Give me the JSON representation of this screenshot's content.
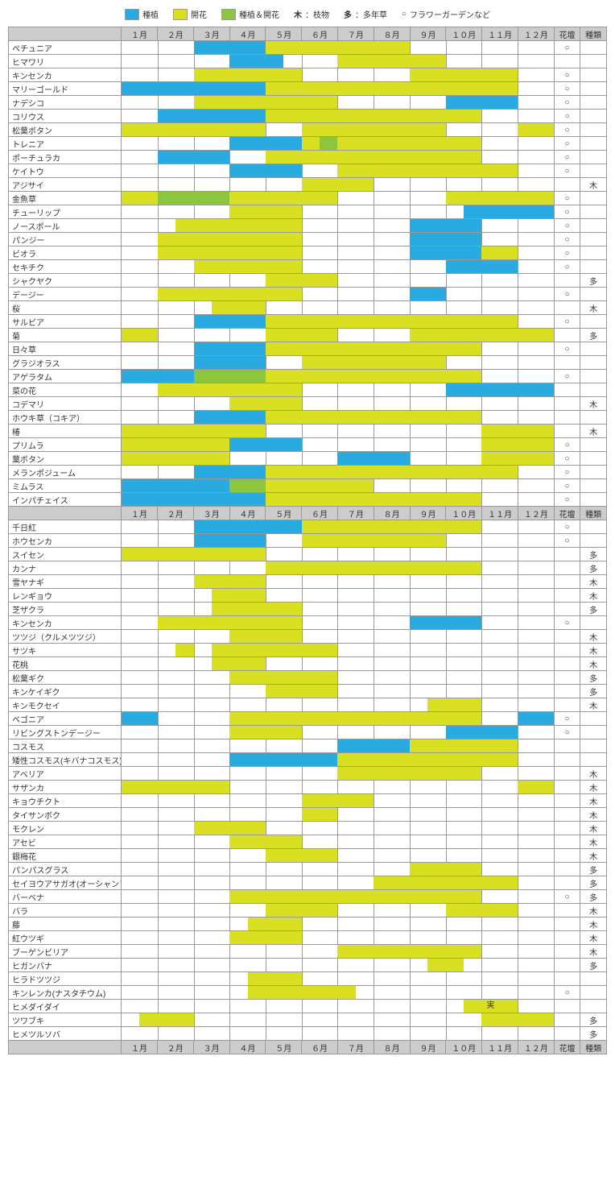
{
  "colors": {
    "plant": "#29abe2",
    "bloom": "#d9e021",
    "both": "#8cc63f",
    "header": "#cccccc",
    "border": "#999999"
  },
  "legend": [
    {
      "swatch": "#29abe2",
      "label": "種植"
    },
    {
      "swatch": "#d9e021",
      "label": "開花"
    },
    {
      "swatch": "#8cc63f",
      "label": "種植＆開花"
    },
    {
      "text": "木",
      "label": "：枝物"
    },
    {
      "text": "多",
      "label": "：多年草"
    },
    {
      "text": "○",
      "label": "フラワーガーデンなど"
    }
  ],
  "months": [
    "１月",
    "２月",
    "３月",
    "４月",
    "５月",
    "６月",
    "７月",
    "８月",
    "９月",
    "１０月",
    "１１月",
    "１２月"
  ],
  "cols": {
    "flower": "花壇",
    "kind": "種類"
  },
  "half_cells": 24,
  "rows": [
    {
      "n": "ペチュニア",
      "s": [
        {
          "f": 4,
          "t": 8,
          "c": "p"
        },
        {
          "f": 8,
          "t": 16,
          "c": "b"
        }
      ],
      "fl": "○",
      "k": ""
    },
    {
      "n": "ヒマワリ",
      "s": [
        {
          "f": 6,
          "t": 9,
          "c": "p"
        },
        {
          "f": 12,
          "t": 18,
          "c": "b"
        }
      ],
      "fl": "",
      "k": ""
    },
    {
      "n": "キンセンカ",
      "s": [
        {
          "f": 4,
          "t": 10,
          "c": "b"
        },
        {
          "f": 16,
          "t": 22,
          "c": "b"
        }
      ],
      "fl": "○",
      "k": ""
    },
    {
      "n": "マリーゴールド",
      "s": [
        {
          "f": 0,
          "t": 8,
          "c": "p"
        },
        {
          "f": 8,
          "t": 22,
          "c": "b"
        }
      ],
      "fl": "○",
      "k": ""
    },
    {
      "n": "ナデシコ",
      "s": [
        {
          "f": 4,
          "t": 8,
          "c": "b"
        },
        {
          "f": 8,
          "t": 12,
          "c": "b"
        },
        {
          "f": 18,
          "t": 22,
          "c": "p"
        }
      ],
      "fl": "○",
      "k": ""
    },
    {
      "n": "コリウス",
      "s": [
        {
          "f": 2,
          "t": 8,
          "c": "p"
        },
        {
          "f": 8,
          "t": 20,
          "c": "b"
        }
      ],
      "fl": "○",
      "k": ""
    },
    {
      "n": "松葉ボタン",
      "s": [
        {
          "f": 0,
          "t": 8,
          "c": "b"
        },
        {
          "f": 10,
          "t": 18,
          "c": "b"
        },
        {
          "f": 22,
          "t": 24,
          "c": "b"
        }
      ],
      "fl": "○",
      "k": ""
    },
    {
      "n": "トレニア",
      "s": [
        {
          "f": 6,
          "t": 10,
          "c": "p"
        },
        {
          "f": 10,
          "t": 11,
          "c": "b"
        },
        {
          "f": 11,
          "t": 12,
          "c": "g"
        },
        {
          "f": 12,
          "t": 20,
          "c": "b"
        }
      ],
      "fl": "○",
      "k": ""
    },
    {
      "n": "ポーチュラカ",
      "s": [
        {
          "f": 2,
          "t": 6,
          "c": "p"
        },
        {
          "f": 8,
          "t": 20,
          "c": "b"
        }
      ],
      "fl": "○",
      "k": ""
    },
    {
      "n": "ケイトウ",
      "s": [
        {
          "f": 6,
          "t": 10,
          "c": "p"
        },
        {
          "f": 12,
          "t": 22,
          "c": "b"
        }
      ],
      "fl": "○",
      "k": ""
    },
    {
      "n": "アジサイ",
      "s": [
        {
          "f": 10,
          "t": 14,
          "c": "b"
        }
      ],
      "fl": "",
      "k": "木"
    },
    {
      "n": "金魚草",
      "s": [
        {
          "f": 0,
          "t": 2,
          "c": "b"
        },
        {
          "f": 2,
          "t": 6,
          "c": "g"
        },
        {
          "f": 6,
          "t": 8,
          "c": "b"
        },
        {
          "f": 8,
          "t": 12,
          "c": "b"
        },
        {
          "f": 18,
          "t": 24,
          "c": "b"
        }
      ],
      "fl": "○",
      "k": ""
    },
    {
      "n": "チューリップ",
      "s": [
        {
          "f": 6,
          "t": 10,
          "c": "b"
        },
        {
          "f": 19,
          "t": 24,
          "c": "p"
        }
      ],
      "fl": "○",
      "k": ""
    },
    {
      "n": "ノースポール",
      "s": [
        {
          "f": 3,
          "t": 10,
          "c": "b"
        },
        {
          "f": 16,
          "t": 20,
          "c": "p"
        }
      ],
      "fl": "○",
      "k": ""
    },
    {
      "n": "パンジー",
      "s": [
        {
          "f": 2,
          "t": 10,
          "c": "b"
        },
        {
          "f": 16,
          "t": 20,
          "c": "p"
        }
      ],
      "fl": "○",
      "k": ""
    },
    {
      "n": "ビオラ",
      "s": [
        {
          "f": 2,
          "t": 10,
          "c": "b"
        },
        {
          "f": 16,
          "t": 20,
          "c": "p"
        },
        {
          "f": 20,
          "t": 22,
          "c": "b"
        }
      ],
      "fl": "○",
      "k": ""
    },
    {
      "n": "セキチク",
      "s": [
        {
          "f": 4,
          "t": 10,
          "c": "b"
        },
        {
          "f": 18,
          "t": 22,
          "c": "p"
        }
      ],
      "fl": "○",
      "k": ""
    },
    {
      "n": "シャクヤク",
      "s": [
        {
          "f": 8,
          "t": 12,
          "c": "b"
        }
      ],
      "fl": "",
      "k": "多"
    },
    {
      "n": "デージー",
      "s": [
        {
          "f": 2,
          "t": 10,
          "c": "b"
        },
        {
          "f": 16,
          "t": 18,
          "c": "p"
        }
      ],
      "fl": "○",
      "k": ""
    },
    {
      "n": "桜",
      "s": [
        {
          "f": 5,
          "t": 8,
          "c": "b"
        }
      ],
      "fl": "",
      "k": "木"
    },
    {
      "n": "サルビア",
      "s": [
        {
          "f": 4,
          "t": 8,
          "c": "p"
        },
        {
          "f": 8,
          "t": 22,
          "c": "b"
        }
      ],
      "fl": "○",
      "k": ""
    },
    {
      "n": "菊",
      "s": [
        {
          "f": 0,
          "t": 2,
          "c": "b"
        },
        {
          "f": 8,
          "t": 12,
          "c": "b"
        },
        {
          "f": 16,
          "t": 24,
          "c": "b"
        }
      ],
      "fl": "",
      "k": "多"
    },
    {
      "n": "日々草",
      "s": [
        {
          "f": 4,
          "t": 8,
          "c": "p"
        },
        {
          "f": 8,
          "t": 20,
          "c": "b"
        }
      ],
      "fl": "○",
      "k": ""
    },
    {
      "n": "グラジオラス",
      "s": [
        {
          "f": 4,
          "t": 8,
          "c": "p"
        },
        {
          "f": 10,
          "t": 18,
          "c": "b"
        }
      ],
      "fl": "",
      "k": ""
    },
    {
      "n": "アゲラタム",
      "s": [
        {
          "f": 0,
          "t": 4,
          "c": "p"
        },
        {
          "f": 4,
          "t": 8,
          "c": "g"
        },
        {
          "f": 8,
          "t": 20,
          "c": "b"
        }
      ],
      "fl": "○",
      "k": ""
    },
    {
      "n": "菜の花",
      "s": [
        {
          "f": 2,
          "t": 10,
          "c": "b"
        },
        {
          "f": 18,
          "t": 24,
          "c": "p"
        }
      ],
      "fl": "",
      "k": ""
    },
    {
      "n": "コデマリ",
      "s": [
        {
          "f": 6,
          "t": 10,
          "c": "b"
        }
      ],
      "fl": "",
      "k": "木"
    },
    {
      "n": "ホウキ草（コキア）",
      "s": [
        {
          "f": 4,
          "t": 8,
          "c": "p"
        },
        {
          "f": 8,
          "t": 20,
          "c": "b"
        }
      ],
      "fl": "",
      "k": ""
    },
    {
      "n": "椿",
      "s": [
        {
          "f": 0,
          "t": 8,
          "c": "b"
        },
        {
          "f": 20,
          "t": 24,
          "c": "b"
        }
      ],
      "fl": "",
      "k": "木"
    },
    {
      "n": "プリムラ",
      "s": [
        {
          "f": 0,
          "t": 6,
          "c": "b"
        },
        {
          "f": 6,
          "t": 10,
          "c": "p"
        },
        {
          "f": 20,
          "t": 24,
          "c": "b"
        }
      ],
      "fl": "○",
      "k": ""
    },
    {
      "n": "葉ボタン",
      "s": [
        {
          "f": 0,
          "t": 6,
          "c": "b"
        },
        {
          "f": 12,
          "t": 16,
          "c": "p"
        },
        {
          "f": 20,
          "t": 24,
          "c": "b"
        }
      ],
      "fl": "○",
      "k": ""
    },
    {
      "n": "メランポジューム",
      "s": [
        {
          "f": 4,
          "t": 8,
          "c": "p"
        },
        {
          "f": 8,
          "t": 22,
          "c": "b"
        }
      ],
      "fl": "○",
      "k": ""
    },
    {
      "n": "ミムラス",
      "s": [
        {
          "f": 0,
          "t": 6,
          "c": "p"
        },
        {
          "f": 6,
          "t": 8,
          "c": "g"
        },
        {
          "f": 8,
          "t": 14,
          "c": "b"
        }
      ],
      "fl": "○",
      "k": ""
    },
    {
      "n": "インパチェイス",
      "s": [
        {
          "f": 0,
          "t": 8,
          "c": "p"
        },
        {
          "f": 8,
          "t": 20,
          "c": "b"
        }
      ],
      "fl": "○",
      "k": ""
    },
    {
      "header": true
    },
    {
      "n": "千日紅",
      "s": [
        {
          "f": 4,
          "t": 10,
          "c": "p"
        },
        {
          "f": 10,
          "t": 20,
          "c": "b"
        }
      ],
      "fl": "○",
      "k": ""
    },
    {
      "n": "ホウセンカ",
      "s": [
        {
          "f": 4,
          "t": 8,
          "c": "p"
        },
        {
          "f": 10,
          "t": 18,
          "c": "b"
        }
      ],
      "fl": "○",
      "k": ""
    },
    {
      "n": "スイセン",
      "s": [
        {
          "f": 0,
          "t": 8,
          "c": "b"
        }
      ],
      "fl": "",
      "k": "多"
    },
    {
      "n": "カンナ",
      "s": [
        {
          "f": 8,
          "t": 20,
          "c": "b"
        }
      ],
      "fl": "",
      "k": "多"
    },
    {
      "n": "雪ヤナギ",
      "s": [
        {
          "f": 4,
          "t": 8,
          "c": "b"
        }
      ],
      "fl": "",
      "k": "木"
    },
    {
      "n": "レンギョウ",
      "s": [
        {
          "f": 5,
          "t": 8,
          "c": "b"
        }
      ],
      "fl": "",
      "k": "木"
    },
    {
      "n": "芝ザクラ",
      "s": [
        {
          "f": 5,
          "t": 10,
          "c": "b"
        }
      ],
      "fl": "",
      "k": "多"
    },
    {
      "n": "キンセンカ",
      "s": [
        {
          "f": 2,
          "t": 10,
          "c": "b"
        },
        {
          "f": 16,
          "t": 20,
          "c": "p"
        }
      ],
      "fl": "○",
      "k": ""
    },
    {
      "n": "ツツジ（クルメツツジ）",
      "s": [
        {
          "f": 6,
          "t": 10,
          "c": "b"
        }
      ],
      "fl": "",
      "k": "木"
    },
    {
      "n": "サツキ",
      "s": [
        {
          "f": 3,
          "t": 4,
          "c": "b"
        },
        {
          "f": 5,
          "t": 12,
          "c": "b"
        }
      ],
      "fl": "",
      "k": "木"
    },
    {
      "n": "花桃",
      "s": [
        {
          "f": 5,
          "t": 8,
          "c": "b"
        }
      ],
      "fl": "",
      "k": "木"
    },
    {
      "n": "松葉ギク",
      "s": [
        {
          "f": 6,
          "t": 12,
          "c": "b"
        }
      ],
      "fl": "",
      "k": "多"
    },
    {
      "n": "キンケイギク",
      "s": [
        {
          "f": 8,
          "t": 12,
          "c": "b"
        }
      ],
      "fl": "",
      "k": "多"
    },
    {
      "n": "キンモクセイ",
      "s": [
        {
          "f": 17,
          "t": 20,
          "c": "b"
        }
      ],
      "fl": "",
      "k": "木"
    },
    {
      "n": "ベゴニア",
      "s": [
        {
          "f": 0,
          "t": 2,
          "c": "p"
        },
        {
          "f": 6,
          "t": 20,
          "c": "b"
        },
        {
          "f": 22,
          "t": 24,
          "c": "p"
        }
      ],
      "fl": "○",
      "k": ""
    },
    {
      "n": "リビングストンデージー",
      "s": [
        {
          "f": 6,
          "t": 10,
          "c": "b"
        },
        {
          "f": 18,
          "t": 22,
          "c": "p"
        }
      ],
      "fl": "○",
      "k": ""
    },
    {
      "n": "コスモス",
      "s": [
        {
          "f": 12,
          "t": 16,
          "c": "p"
        },
        {
          "f": 16,
          "t": 22,
          "c": "b"
        }
      ],
      "fl": "",
      "k": ""
    },
    {
      "n": "矮性コスモス(キバナコスモス)",
      "s": [
        {
          "f": 6,
          "t": 12,
          "c": "p"
        },
        {
          "f": 12,
          "t": 22,
          "c": "b"
        }
      ],
      "fl": "",
      "k": ""
    },
    {
      "n": "アベリア",
      "s": [
        {
          "f": 12,
          "t": 20,
          "c": "b"
        }
      ],
      "fl": "",
      "k": "木"
    },
    {
      "n": "サザンカ",
      "s": [
        {
          "f": 0,
          "t": 6,
          "c": "b"
        },
        {
          "f": 22,
          "t": 24,
          "c": "b"
        }
      ],
      "fl": "",
      "k": "木"
    },
    {
      "n": "キョウチクト",
      "s": [
        {
          "f": 10,
          "t": 14,
          "c": "b"
        }
      ],
      "fl": "",
      "k": "木"
    },
    {
      "n": "タイサンボク",
      "s": [
        {
          "f": 10,
          "t": 12,
          "c": "b"
        }
      ],
      "fl": "",
      "k": "木"
    },
    {
      "n": "モクレン",
      "s": [
        {
          "f": 4,
          "t": 8,
          "c": "b"
        }
      ],
      "fl": "",
      "k": "木"
    },
    {
      "n": "アセビ",
      "s": [
        {
          "f": 6,
          "t": 10,
          "c": "b"
        }
      ],
      "fl": "",
      "k": "木"
    },
    {
      "n": "銀梅花",
      "s": [
        {
          "f": 8,
          "t": 12,
          "c": "b"
        }
      ],
      "fl": "",
      "k": "木"
    },
    {
      "n": "パンパスグラス",
      "s": [
        {
          "f": 16,
          "t": 20,
          "c": "b"
        }
      ],
      "fl": "",
      "k": "多"
    },
    {
      "n": "セイヨウアサガオ(オーシャンブル)",
      "s": [
        {
          "f": 14,
          "t": 22,
          "c": "b"
        }
      ],
      "fl": "",
      "k": "多"
    },
    {
      "n": "バーベナ",
      "s": [
        {
          "f": 6,
          "t": 20,
          "c": "b"
        }
      ],
      "fl": "○",
      "k": "多"
    },
    {
      "n": "バラ",
      "s": [
        {
          "f": 8,
          "t": 12,
          "c": "b"
        },
        {
          "f": 18,
          "t": 22,
          "c": "b"
        }
      ],
      "fl": "",
      "k": "木"
    },
    {
      "n": "藤",
      "s": [
        {
          "f": 7,
          "t": 10,
          "c": "b"
        }
      ],
      "fl": "",
      "k": "木"
    },
    {
      "n": "紅ウツギ",
      "s": [
        {
          "f": 6,
          "t": 10,
          "c": "b"
        }
      ],
      "fl": "",
      "k": "木"
    },
    {
      "n": "ブーゲンビリア",
      "s": [
        {
          "f": 12,
          "t": 20,
          "c": "b"
        }
      ],
      "fl": "",
      "k": "木"
    },
    {
      "n": "ヒガンバナ",
      "s": [
        {
          "f": 17,
          "t": 19,
          "c": "b"
        }
      ],
      "fl": "",
      "k": "多"
    },
    {
      "n": "ヒラドツツジ",
      "s": [
        {
          "f": 7,
          "t": 10,
          "c": "b"
        }
      ],
      "fl": "",
      "k": ""
    },
    {
      "n": "キンレンカ(ナスタチウム)",
      "s": [
        {
          "f": 7,
          "t": 13,
          "c": "b"
        }
      ],
      "fl": "○",
      "k": ""
    },
    {
      "n": "ヒメダイダイ",
      "s": [
        {
          "f": 19,
          "t": 22,
          "c": "b",
          "t2": "実"
        }
      ],
      "fl": "",
      "k": ""
    },
    {
      "n": "ツワブキ",
      "s": [
        {
          "f": 1,
          "t": 4,
          "c": "b"
        },
        {
          "f": 20,
          "t": 24,
          "c": "b"
        }
      ],
      "fl": "",
      "k": "多"
    },
    {
      "n": "ヒメツルソバ",
      "s": [],
      "fl": "",
      "k": "多"
    },
    {
      "header": true
    }
  ]
}
